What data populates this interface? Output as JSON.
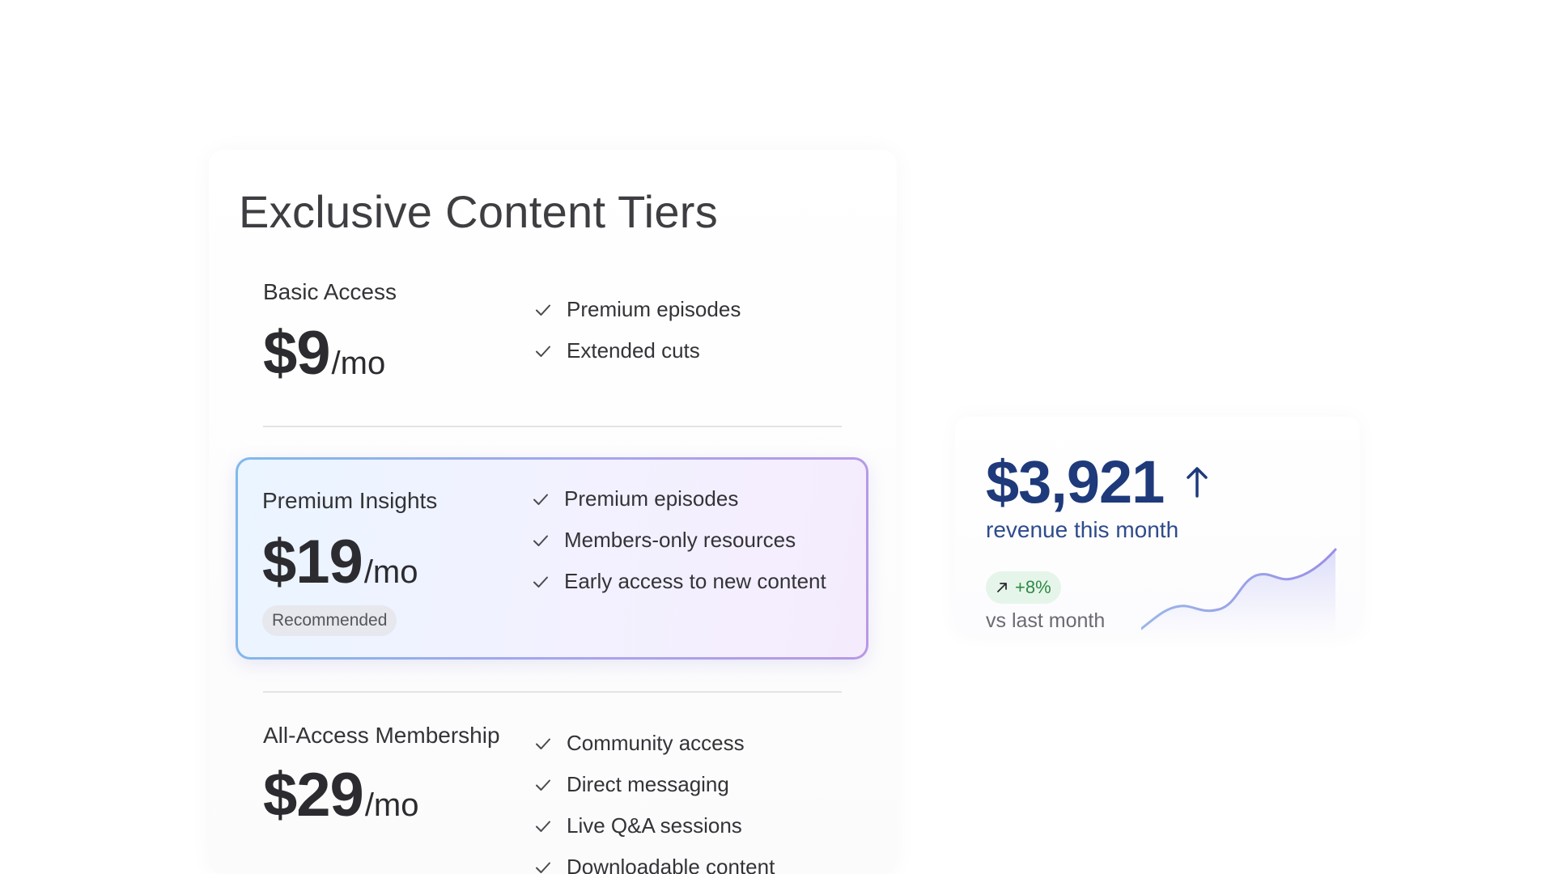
{
  "panel": {
    "title": "Exclusive Content Tiers"
  },
  "tiers": [
    {
      "name": "Basic Access",
      "price": "$9",
      "unit": "/mo",
      "features": [
        "Premium episodes",
        "Extended cuts"
      ]
    },
    {
      "name": "Premium Insights",
      "price": "$19",
      "unit": "/mo",
      "badge": "Recommended",
      "features": [
        "Premium episodes",
        "Members-only resources",
        "Early access to new content"
      ]
    },
    {
      "name": "All-Access Membership",
      "price": "$29",
      "unit": "/mo",
      "features": [
        "Community access",
        "Direct messaging",
        "Live Q&A sessions",
        "Downloadable content"
      ]
    }
  ],
  "revenue": {
    "amount": "$3,921",
    "label": "revenue this month",
    "growth": "+8%",
    "compare": "vs last month"
  },
  "icons": {
    "check": "check-icon",
    "arrow": "arrow-up-icon",
    "trend": "trend-up-icon"
  },
  "colors": {
    "revenue_text": "#1e3a7a",
    "growth_text": "#2e8a45",
    "growth_bg": "#e6f5e9",
    "premium_border_start": "#7fb9ec",
    "premium_border_end": "#b898e6"
  }
}
